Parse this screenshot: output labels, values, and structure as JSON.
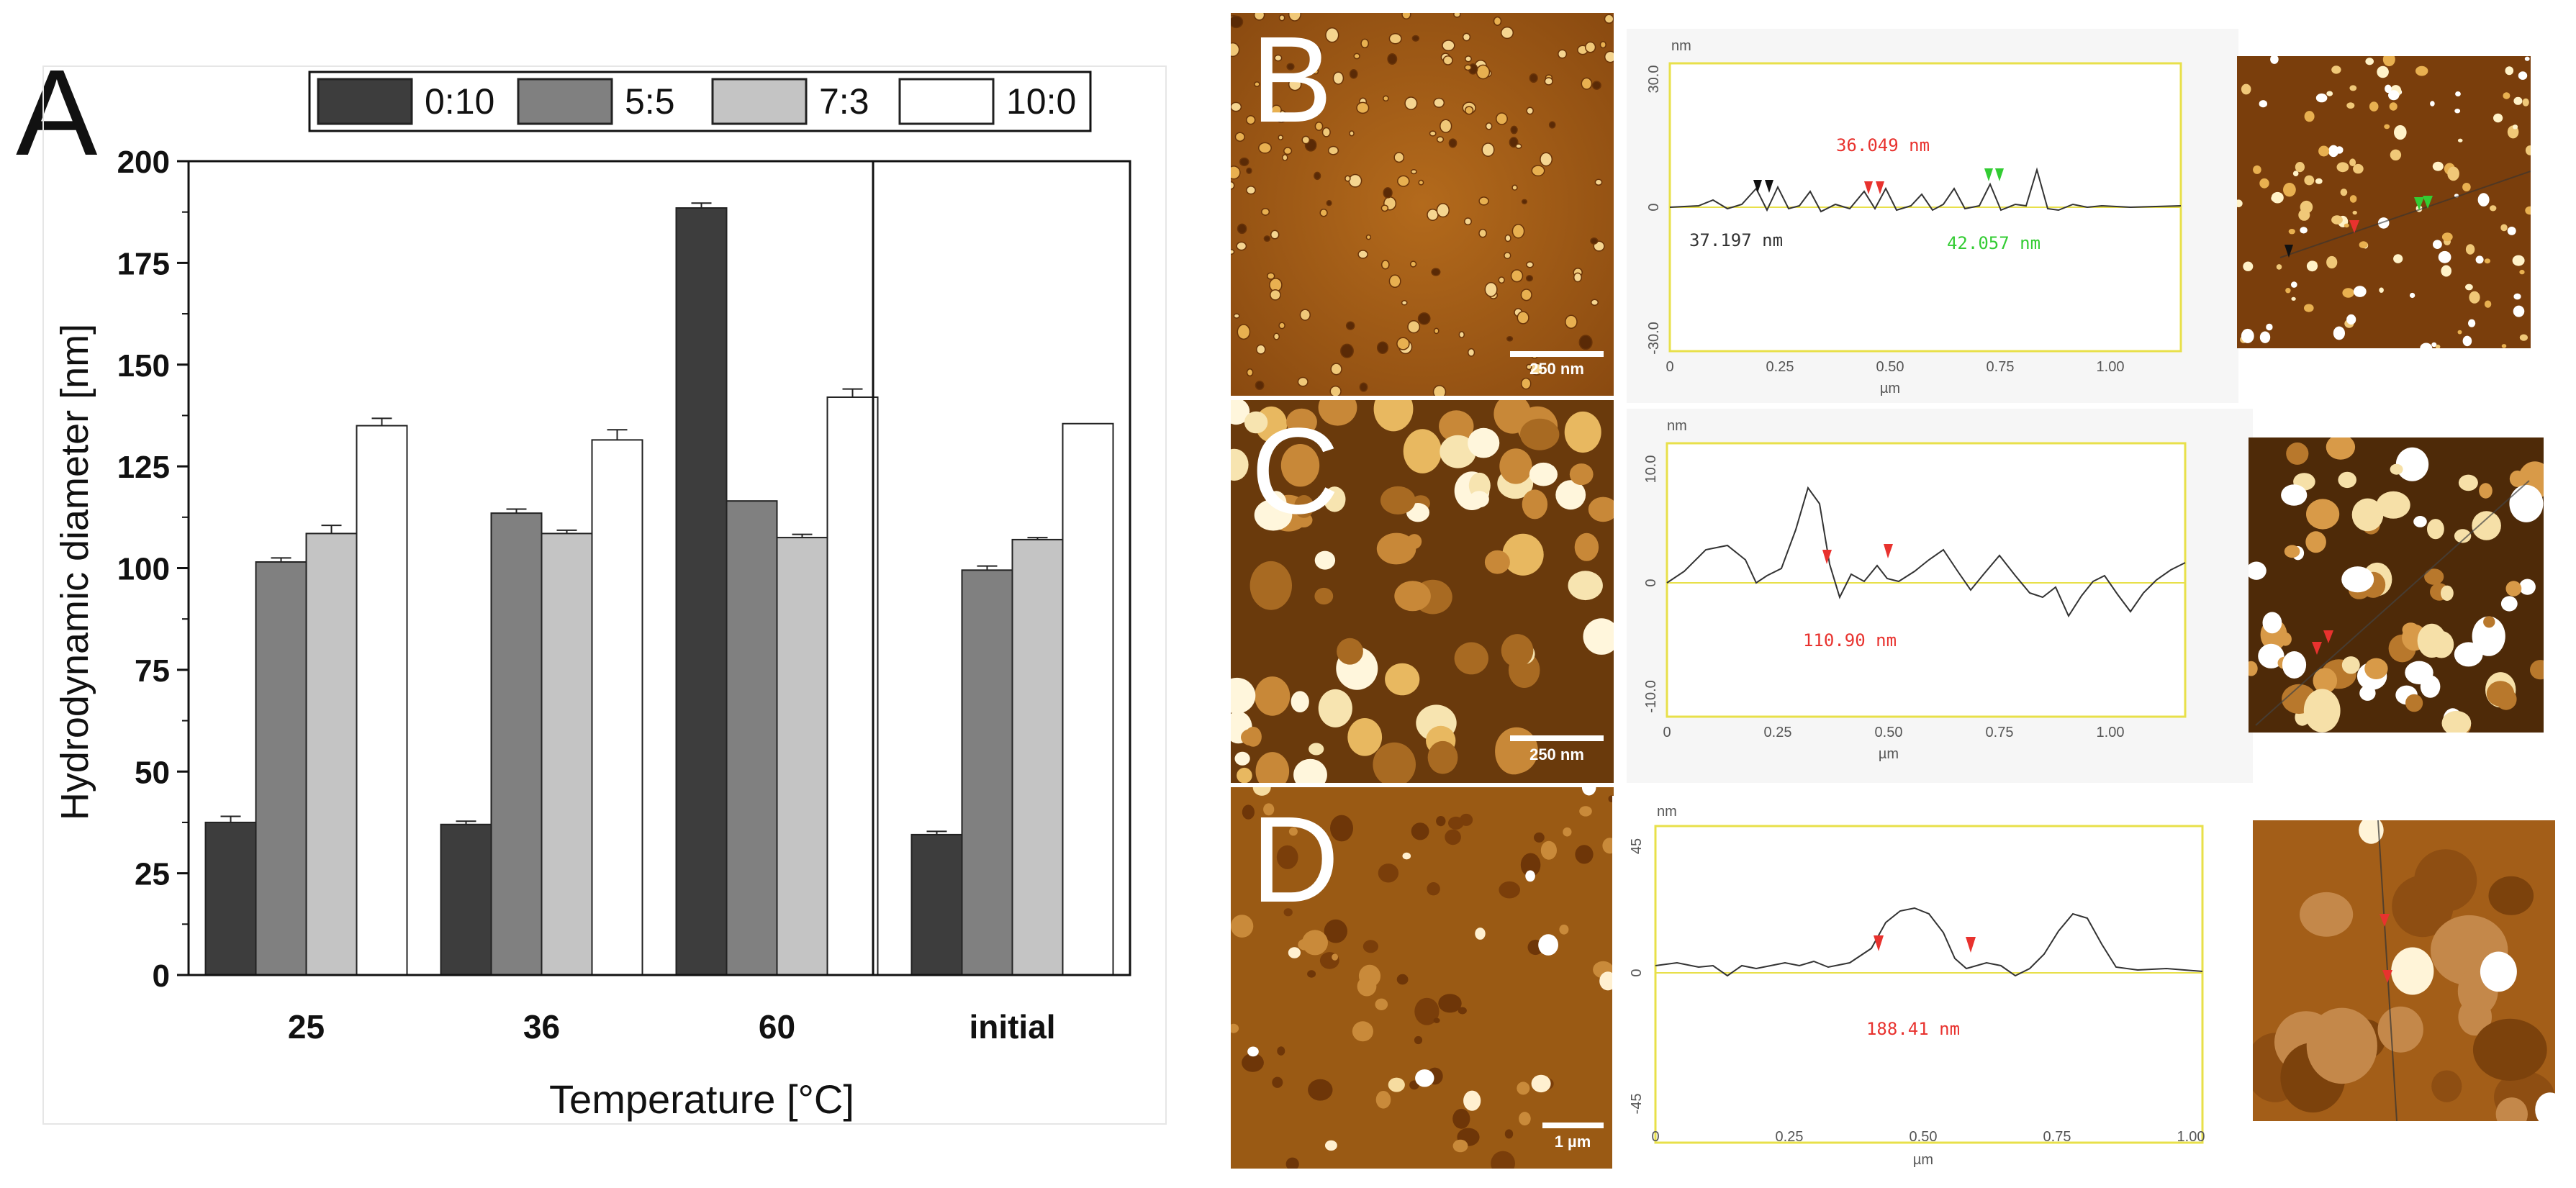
{
  "panel_a": {
    "letter": "A",
    "colors": {
      "0:10": "#3d3d3d",
      "5:5": "#808080",
      "7:3": "#c4c4c4",
      "10:0": "#ffffff"
    }
  },
  "chart_data": {
    "type": "bar",
    "title": "",
    "xlabel": "Temperature [°C]",
    "ylabel": "Hydrodynamic diameter [nm]",
    "ylim": [
      0,
      200
    ],
    "yticks": [
      0,
      25,
      50,
      75,
      100,
      125,
      150,
      175,
      200
    ],
    "categories": [
      "25",
      "36",
      "60",
      "initial"
    ],
    "legend_position": "top",
    "series": [
      {
        "name": "0:10",
        "color": "#3d3d3d",
        "values": [
          37.5,
          37.0,
          188.5,
          34.5
        ],
        "errors": [
          1.5,
          0.8,
          1.2,
          0.8
        ]
      },
      {
        "name": "5:5",
        "color": "#808080",
        "values": [
          101.5,
          113.5,
          116.5,
          99.5
        ],
        "errors": [
          1.0,
          1.0,
          0,
          1.0
        ]
      },
      {
        "name": "7:3",
        "color": "#c4c4c4",
        "values": [
          108.5,
          108.5,
          107.5,
          107.0
        ],
        "errors": [
          2.0,
          0.8,
          0.8,
          0.5
        ]
      },
      {
        "name": "10:0",
        "color": "#ffffff",
        "values": [
          135.0,
          131.5,
          142.0,
          135.5
        ],
        "errors": [
          1.8,
          2.5,
          2.0,
          0
        ]
      }
    ]
  },
  "panels": {
    "b": {
      "letter": "B",
      "scale_label": "250 nm",
      "profile": {
        "unit_top": "nm",
        "y_top": "30.0",
        "y_zero": "0",
        "y_bottom": "-30.0",
        "x_ticks": [
          "0",
          "0.25",
          "0.50",
          "0.75",
          "1.00"
        ],
        "x_unit": "µm",
        "annotations": [
          {
            "text": "36.049 nm",
            "color": "#e8322e"
          },
          {
            "text": "37.197 nm",
            "color": "#333333"
          },
          {
            "text": "42.057 nm",
            "color": "#33cc33"
          }
        ]
      }
    },
    "c": {
      "letter": "C",
      "scale_label": "250 nm",
      "profile": {
        "unit_top": "nm",
        "y_top": "10.0",
        "y_zero": "0",
        "y_bottom": "-10.0",
        "x_ticks": [
          "0",
          "0.25",
          "0.50",
          "0.75",
          "1.00"
        ],
        "x_unit": "µm",
        "annotations": [
          {
            "text": "110.90 nm",
            "color": "#e8322e"
          }
        ]
      }
    },
    "d": {
      "letter": "D",
      "scale_label": "1 µm",
      "profile": {
        "unit_top": "nm",
        "y_top": "45",
        "y_zero": "0",
        "y_bottom": "-45",
        "x_ticks": [
          "0",
          "0.25",
          "0.50",
          "0.75",
          "1.00"
        ],
        "x_unit": "µm",
        "annotations": [
          {
            "text": "188.41 nm",
            "color": "#e8322e"
          }
        ]
      }
    }
  }
}
